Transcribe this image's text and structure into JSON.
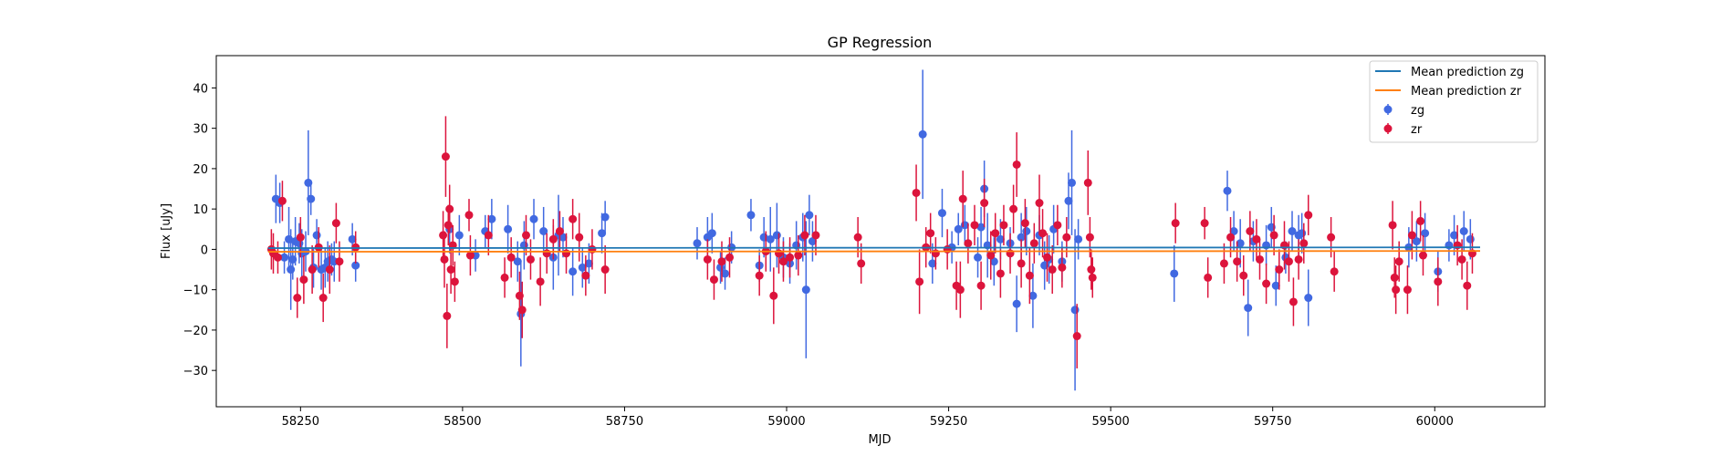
{
  "chart_data": {
    "type": "scatter",
    "title": "GP Regression",
    "xlabel": "MJD",
    "ylabel": "Flux [uJy]",
    "xlim": [
      58120,
      60170
    ],
    "ylim": [
      -39,
      48
    ],
    "xticks": [
      58250,
      58500,
      58750,
      59000,
      59250,
      59500,
      59750,
      60000
    ],
    "yticks": [
      -30,
      -20,
      -10,
      0,
      10,
      20,
      30,
      40
    ],
    "grid": false,
    "legend_position": "top-right",
    "colors": {
      "zg": "#4169e1",
      "zr": "#dc143c",
      "mean_zg": "#1f77b4",
      "mean_zr": "#ff7f0e"
    },
    "lines": [
      {
        "name": "Mean prediction zg",
        "color": "#1f77b4",
        "x": [
          58200,
          60070
        ],
        "y": [
          0.3,
          0.5
        ]
      },
      {
        "name": "Mean prediction zr",
        "color": "#ff7f0e",
        "x": [
          58200,
          60070
        ],
        "y": [
          -0.6,
          -0.4
        ]
      }
    ],
    "series": [
      {
        "name": "zg",
        "color": "#4169e1",
        "points": [
          [
            58212,
            12.5,
            6
          ],
          [
            58218,
            11.5,
            5
          ],
          [
            58225,
            -2.0,
            4
          ],
          [
            58232,
            2.5,
            8
          ],
          [
            58235,
            -5.0,
            10
          ],
          [
            58238,
            -2.5,
            5
          ],
          [
            58242,
            2.0,
            6
          ],
          [
            58248,
            1.5,
            5
          ],
          [
            58252,
            -1.0,
            6
          ],
          [
            58258,
            -0.5,
            5
          ],
          [
            58262,
            16.5,
            13
          ],
          [
            58266,
            12.5,
            4
          ],
          [
            58270,
            -4.5,
            5
          ],
          [
            58275,
            3.5,
            4
          ],
          [
            58282,
            -5.0,
            5
          ],
          [
            58288,
            -4.5,
            5
          ],
          [
            58292,
            -3.0,
            5
          ],
          [
            58298,
            -2.5,
            4
          ],
          [
            58302,
            -3.0,
            5
          ],
          [
            58330,
            2.5,
            4
          ],
          [
            58335,
            -4.0,
            4
          ],
          [
            58480,
            5.0,
            6
          ],
          [
            58495,
            3.5,
            5
          ],
          [
            58520,
            -1.5,
            4
          ],
          [
            58535,
            4.5,
            4
          ],
          [
            58545,
            7.5,
            5
          ],
          [
            58570,
            5.0,
            6
          ],
          [
            58585,
            -3.0,
            5
          ],
          [
            58590,
            -16.0,
            13
          ],
          [
            58595,
            1.0,
            6
          ],
          [
            58610,
            7.5,
            5
          ],
          [
            58625,
            4.5,
            6
          ],
          [
            58640,
            -2.0,
            8
          ],
          [
            58648,
            3.5,
            10
          ],
          [
            58655,
            3.0,
            5
          ],
          [
            58670,
            -5.5,
            6
          ],
          [
            58685,
            -4.5,
            5
          ],
          [
            58695,
            -3.5,
            5
          ],
          [
            58715,
            4.0,
            5
          ],
          [
            58720,
            8.0,
            4
          ],
          [
            58862,
            1.5,
            4
          ],
          [
            58878,
            3.0,
            5
          ],
          [
            58885,
            4.0,
            5
          ],
          [
            58898,
            -4.5,
            4
          ],
          [
            58905,
            -6.0,
            4
          ],
          [
            58915,
            0.5,
            4
          ],
          [
            58945,
            8.5,
            4
          ],
          [
            58958,
            -4.0,
            4
          ],
          [
            58965,
            3.0,
            5
          ],
          [
            58975,
            2.5,
            8
          ],
          [
            58985,
            3.5,
            8
          ],
          [
            58995,
            -2.0,
            5
          ],
          [
            59005,
            -3.5,
            5
          ],
          [
            59015,
            1.0,
            6
          ],
          [
            59025,
            3.0,
            6
          ],
          [
            59030,
            -10.0,
            17
          ],
          [
            59035,
            8.5,
            5
          ],
          [
            59040,
            2.0,
            5
          ],
          [
            59210,
            28.5,
            16
          ],
          [
            59225,
            -3.5,
            5
          ],
          [
            59240,
            9.0,
            6
          ],
          [
            59255,
            0.5,
            4
          ],
          [
            59265,
            5.0,
            4
          ],
          [
            59275,
            6.0,
            5
          ],
          [
            59295,
            -2.0,
            5
          ],
          [
            59300,
            5.5,
            5
          ],
          [
            59305,
            15.0,
            7
          ],
          [
            59310,
            1.0,
            8
          ],
          [
            59320,
            -3.0,
            6
          ],
          [
            59330,
            2.5,
            5
          ],
          [
            59345,
            1.5,
            4
          ],
          [
            59355,
            -13.5,
            7
          ],
          [
            59362,
            3.0,
            6
          ],
          [
            59370,
            4.5,
            6
          ],
          [
            59380,
            -11.5,
            8
          ],
          [
            59390,
            3.5,
            5
          ],
          [
            59398,
            -4.0,
            6
          ],
          [
            59405,
            -2.5,
            6
          ],
          [
            59412,
            5.0,
            6
          ],
          [
            59425,
            -3.0,
            5
          ],
          [
            59435,
            12.0,
            7
          ],
          [
            59440,
            16.5,
            13
          ],
          [
            59445,
            -15.0,
            20
          ],
          [
            59450,
            2.5,
            5
          ],
          [
            59598,
            -6.0,
            7
          ],
          [
            59680,
            14.5,
            5
          ],
          [
            59690,
            4.5,
            5
          ],
          [
            59700,
            1.5,
            6
          ],
          [
            59712,
            -14.5,
            7
          ],
          [
            59720,
            2.0,
            5
          ],
          [
            59740,
            1.0,
            5
          ],
          [
            59748,
            5.5,
            5
          ],
          [
            59755,
            -9.0,
            5
          ],
          [
            59770,
            -2.0,
            4
          ],
          [
            59780,
            4.5,
            5
          ],
          [
            59790,
            3.5,
            5
          ],
          [
            59795,
            4.0,
            5
          ],
          [
            59805,
            -12.0,
            7
          ],
          [
            59960,
            0.5,
            5
          ],
          [
            59972,
            2.0,
            5
          ],
          [
            59985,
            4.0,
            5
          ],
          [
            60005,
            -5.5,
            5
          ],
          [
            60022,
            1.0,
            4
          ],
          [
            60030,
            3.5,
            5
          ],
          [
            60045,
            4.5,
            5
          ],
          [
            60055,
            2.5,
            5
          ]
        ]
      },
      {
        "name": "zr",
        "color": "#dc143c",
        "points": [
          [
            58205,
            0.0,
            5
          ],
          [
            58208,
            -1.0,
            5
          ],
          [
            58215,
            -2.0,
            4
          ],
          [
            58222,
            12.0,
            5
          ],
          [
            58245,
            -12.0,
            5
          ],
          [
            58250,
            3.0,
            5
          ],
          [
            58255,
            -7.5,
            6
          ],
          [
            58268,
            -5.0,
            6
          ],
          [
            58278,
            0.5,
            5
          ],
          [
            58285,
            -12.0,
            6
          ],
          [
            58295,
            -5.0,
            6
          ],
          [
            58305,
            6.5,
            5
          ],
          [
            58310,
            -3.0,
            5
          ],
          [
            58335,
            0.5,
            4
          ],
          [
            58470,
            3.5,
            6
          ],
          [
            58472,
            -2.5,
            7
          ],
          [
            58474,
            23.0,
            10
          ],
          [
            58476,
            -16.5,
            8
          ],
          [
            58478,
            6.0,
            5
          ],
          [
            58480,
            10.0,
            6
          ],
          [
            58482,
            -5.0,
            6
          ],
          [
            58485,
            1.0,
            5
          ],
          [
            58488,
            -8.0,
            5
          ],
          [
            58510,
            8.5,
            4
          ],
          [
            58512,
            -1.5,
            5
          ],
          [
            58540,
            3.5,
            5
          ],
          [
            58565,
            -7.0,
            5
          ],
          [
            58575,
            -2.0,
            5
          ],
          [
            58588,
            -11.5,
            6
          ],
          [
            58592,
            -15.0,
            7
          ],
          [
            58598,
            3.5,
            5
          ],
          [
            58605,
            -2.5,
            5
          ],
          [
            58620,
            -8.0,
            6
          ],
          [
            58630,
            -1.0,
            5
          ],
          [
            58640,
            2.5,
            5
          ],
          [
            58650,
            4.5,
            5
          ],
          [
            58660,
            -1.0,
            5
          ],
          [
            58670,
            7.5,
            5
          ],
          [
            58680,
            3.0,
            6
          ],
          [
            58690,
            -6.5,
            5
          ],
          [
            58700,
            0.0,
            5
          ],
          [
            58720,
            -5.0,
            6
          ],
          [
            58878,
            -2.5,
            5
          ],
          [
            58888,
            -7.5,
            5
          ],
          [
            58900,
            -3.0,
            5
          ],
          [
            58912,
            -2.0,
            5
          ],
          [
            58958,
            -6.5,
            5
          ],
          [
            58968,
            -0.5,
            5
          ],
          [
            58980,
            -11.5,
            7
          ],
          [
            58988,
            -1.0,
            5
          ],
          [
            58995,
            -3.0,
            5
          ],
          [
            59005,
            -2.0,
            5
          ],
          [
            59018,
            -1.5,
            5
          ],
          [
            59028,
            3.5,
            5
          ],
          [
            59045,
            3.5,
            5
          ],
          [
            59110,
            3.0,
            5
          ],
          [
            59115,
            -3.5,
            5
          ],
          [
            59200,
            14.0,
            7
          ],
          [
            59205,
            -8.0,
            8
          ],
          [
            59215,
            0.5,
            5
          ],
          [
            59222,
            4.0,
            5
          ],
          [
            59230,
            -1.0,
            4
          ],
          [
            59248,
            0.0,
            5
          ],
          [
            59262,
            -9.0,
            6
          ],
          [
            59268,
            -10.0,
            7
          ],
          [
            59272,
            12.5,
            7
          ],
          [
            59280,
            1.5,
            5
          ],
          [
            59290,
            6.0,
            5
          ],
          [
            59300,
            -9.0,
            6
          ],
          [
            59305,
            11.5,
            6
          ],
          [
            59315,
            -1.5,
            6
          ],
          [
            59322,
            4.0,
            5
          ],
          [
            59330,
            -6.0,
            6
          ],
          [
            59335,
            6.0,
            5
          ],
          [
            59345,
            -1.0,
            5
          ],
          [
            59350,
            10.0,
            6
          ],
          [
            59355,
            21.0,
            8
          ],
          [
            59362,
            -3.5,
            6
          ],
          [
            59368,
            6.5,
            6
          ],
          [
            59375,
            -6.5,
            7
          ],
          [
            59382,
            1.5,
            5
          ],
          [
            59390,
            11.5,
            7
          ],
          [
            59395,
            4.0,
            6
          ],
          [
            59402,
            -2.0,
            6
          ],
          [
            59410,
            -5.0,
            6
          ],
          [
            59418,
            6.0,
            5
          ],
          [
            59425,
            -4.5,
            5
          ],
          [
            59432,
            3.0,
            5
          ],
          [
            59448,
            -21.5,
            8
          ],
          [
            59465,
            16.5,
            8
          ],
          [
            59468,
            3.0,
            5
          ],
          [
            59470,
            -5.0,
            5
          ],
          [
            59472,
            -7.0,
            5
          ],
          [
            59600,
            6.5,
            5
          ],
          [
            59645,
            6.5,
            4
          ],
          [
            59650,
            -7.0,
            5
          ],
          [
            59675,
            -3.5,
            5
          ],
          [
            59685,
            3.0,
            5
          ],
          [
            59695,
            -3.0,
            5
          ],
          [
            59705,
            -6.5,
            5
          ],
          [
            59715,
            4.5,
            5
          ],
          [
            59725,
            2.5,
            5
          ],
          [
            59730,
            -2.5,
            5
          ],
          [
            59740,
            -8.5,
            5
          ],
          [
            59752,
            3.5,
            5
          ],
          [
            59760,
            -5.0,
            5
          ],
          [
            59768,
            1.0,
            6
          ],
          [
            59775,
            -3.0,
            5
          ],
          [
            59782,
            -13.0,
            6
          ],
          [
            59790,
            -2.5,
            5
          ],
          [
            59798,
            1.5,
            5
          ],
          [
            59805,
            8.5,
            5
          ],
          [
            59840,
            3.0,
            5
          ],
          [
            59845,
            -5.5,
            5
          ],
          [
            59935,
            6.0,
            6
          ],
          [
            59938,
            -7.0,
            5
          ],
          [
            59940,
            -10.0,
            6
          ],
          [
            59945,
            -3.0,
            5
          ],
          [
            59958,
            -10.0,
            6
          ],
          [
            59965,
            3.5,
            6
          ],
          [
            59978,
            7.0,
            5
          ],
          [
            59982,
            -1.5,
            5
          ],
          [
            60005,
            -8.0,
            6
          ],
          [
            60035,
            1.0,
            5
          ],
          [
            60042,
            -2.5,
            5
          ],
          [
            60050,
            -9.0,
            6
          ],
          [
            60058,
            -1.0,
            5
          ]
        ]
      }
    ]
  }
}
